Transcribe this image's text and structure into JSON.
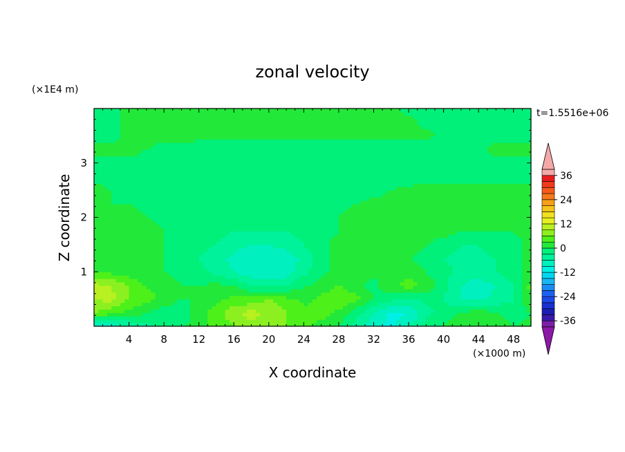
{
  "chart_data": {
    "type": "heatmap",
    "title": "zonal velocity",
    "xlabel": "X coordinate",
    "ylabel": "Z coordinate",
    "x_unit": "(×1000 m)",
    "y_unit": "(×1E4 m)",
    "time_label": "t=1.5516e+06",
    "xlim": [
      0,
      50
    ],
    "ylim": [
      0,
      4
    ],
    "x_ticks": [
      4,
      8,
      12,
      16,
      20,
      24,
      28,
      32,
      36,
      40,
      44,
      48
    ],
    "y_ticks": [
      1,
      2,
      3
    ],
    "colorbar": {
      "levels": [
        -39,
        -36,
        -33,
        -30,
        -27,
        -24,
        -21,
        -18,
        -15,
        -12,
        -9,
        -6,
        -3,
        0,
        3,
        6,
        9,
        12,
        15,
        18,
        21,
        24,
        27,
        30,
        33,
        36,
        39
      ],
      "colors": [
        "#7a1fa8",
        "#3a1aa8",
        "#1b1fb0",
        "#1b30d0",
        "#1b48e8",
        "#1b62f0",
        "#1b8cf4",
        "#19b6f5",
        "#00d7f0",
        "#00f0e6",
        "#00f0c0",
        "#00f29a",
        "#00f07a",
        "#22e83a",
        "#4ef01a",
        "#8cf020",
        "#b8f020",
        "#e6f020",
        "#f0e020",
        "#f5c21a",
        "#f5a01a",
        "#f57a1a",
        "#f55a1a",
        "#f03a1a",
        "#e81e1e",
        "#f4a8a8"
      ],
      "under_color": "#8c18a8",
      "over_color": "#f4a8a8",
      "tick_labels": [
        "36",
        "24",
        "12",
        "0",
        "-12",
        "-24",
        "-36"
      ],
      "tick_values": [
        36,
        24,
        12,
        0,
        -12,
        -24,
        -36
      ]
    },
    "field": {
      "x_samples": [
        0,
        2,
        4,
        6,
        8,
        10,
        12,
        14,
        16,
        18,
        20,
        22,
        24,
        26,
        28,
        30,
        32,
        34,
        36,
        38,
        40,
        42,
        44,
        46,
        48,
        50
      ],
      "z_samples": [
        0,
        0.25,
        0.5,
        0.75,
        1,
        1.25,
        1.5,
        1.75,
        2,
        2.25,
        2.5,
        2.75,
        3,
        3.25,
        3.5,
        3.75,
        4
      ],
      "values": [
        [
          -10,
          -8,
          -6,
          -4,
          -2,
          -1,
          2,
          4,
          6,
          8,
          8,
          6,
          4,
          2,
          0,
          -4,
          -8,
          -10,
          -6,
          -2,
          0,
          2,
          3,
          2,
          0,
          1
        ],
        [
          6,
          4,
          2,
          0,
          -2,
          -2,
          2,
          4,
          8,
          10,
          8,
          6,
          4,
          4,
          2,
          -2,
          -6,
          -10,
          -9,
          -4,
          -2,
          0,
          2,
          0,
          -2,
          0
        ],
        [
          9,
          10,
          6,
          4,
          2,
          0,
          0,
          2,
          4,
          4,
          6,
          4,
          2,
          4,
          6,
          4,
          0,
          -2,
          -4,
          -2,
          -3,
          -6,
          -7,
          -5,
          -3,
          3
        ],
        [
          10,
          9,
          6,
          3,
          2,
          0,
          0,
          1,
          0,
          -3,
          -4,
          -3,
          0,
          1,
          3,
          1,
          -1,
          2,
          5,
          2,
          -2,
          -6,
          -8,
          -6,
          -3,
          4
        ],
        [
          3,
          2,
          1,
          0,
          0,
          -1,
          -2,
          -4,
          -6,
          -8,
          -9,
          -8,
          -4,
          -1,
          1,
          1,
          1,
          1,
          1,
          0,
          -2,
          -4,
          -4,
          -3,
          -1,
          1
        ],
        [
          2,
          2,
          1,
          1,
          0,
          -1,
          -3,
          -5,
          -7,
          -9,
          -9,
          -8,
          -5,
          -1,
          1,
          1,
          1,
          1,
          0,
          -1,
          -3,
          -4,
          -4,
          -3,
          -1,
          1
        ],
        [
          2,
          2,
          1,
          1,
          0,
          -1,
          -2,
          -3,
          -5,
          -6,
          -6,
          -5,
          -3,
          -1,
          1,
          1,
          1,
          1,
          1,
          0,
          -1,
          -3,
          -3,
          -2,
          -1,
          1
        ],
        [
          2,
          1,
          1,
          1,
          0,
          -2,
          -2,
          -2,
          -3,
          -3,
          -3,
          -3,
          -2,
          -1,
          0,
          1,
          1,
          1,
          1,
          1,
          1,
          0,
          0,
          0,
          0,
          1
        ],
        [
          2,
          1,
          1,
          0,
          -1,
          -2,
          -2,
          -2,
          -2,
          -2,
          -2,
          -2,
          -2,
          -1,
          0,
          1,
          1,
          1,
          1,
          1,
          1,
          1,
          1,
          1,
          1,
          1
        ],
        [
          1,
          0,
          0,
          -1,
          -1,
          -2,
          -2,
          -2,
          -2,
          -2,
          -2,
          -2,
          -2,
          -1,
          -1,
          0,
          1,
          1,
          1,
          1,
          1,
          1,
          1,
          1,
          1,
          1
        ],
        [
          1,
          0,
          -1,
          -1,
          -2,
          -2,
          -2,
          -2,
          -2,
          -2,
          -2,
          -2,
          -2,
          -2,
          -2,
          -2,
          -1,
          0,
          1,
          1,
          1,
          1,
          1,
          1,
          1,
          1
        ],
        [
          -1,
          -1,
          -2,
          -2,
          -2,
          -2,
          -2,
          -2,
          -2,
          -2,
          -2,
          -2,
          -2,
          -2,
          -2,
          -2,
          -2,
          -2,
          -2,
          -1,
          -1,
          -1,
          -1,
          -1,
          -1,
          -1
        ],
        [
          -1,
          -1,
          -1,
          -1,
          -1,
          -1,
          -1,
          -1,
          -1,
          -1,
          -1,
          -1,
          -1,
          -1,
          -1,
          -1,
          -1,
          -1,
          -1,
          -1,
          -1,
          -1,
          -1,
          -1,
          -1,
          -1
        ],
        [
          1,
          1,
          1,
          0,
          -1,
          -1,
          -2,
          -2,
          -2,
          -2,
          -2,
          -2,
          -2,
          -2,
          -2,
          -2,
          -2,
          -2,
          -2,
          -2,
          -2,
          -1,
          -1,
          1,
          1,
          1
        ],
        [
          -1,
          -1,
          1,
          1,
          1,
          1,
          1,
          1,
          1,
          1,
          1,
          1,
          1,
          1,
          1,
          1,
          1,
          1,
          1,
          1,
          -1,
          -1,
          -1,
          -1,
          -1,
          -1
        ],
        [
          -1,
          -1,
          1,
          1,
          1,
          1,
          1,
          1,
          1,
          1,
          1,
          1,
          1,
          1,
          1,
          1,
          1,
          1,
          1,
          -1,
          -1,
          -1,
          -1,
          -1,
          -1,
          -1
        ],
        [
          -1,
          -1,
          1,
          1,
          1,
          1,
          1,
          1,
          1,
          1,
          1,
          1,
          1,
          1,
          1,
          1,
          1,
          1,
          -1,
          -1,
          -1,
          -1,
          -1,
          -1,
          -1,
          -1
        ]
      ]
    }
  }
}
